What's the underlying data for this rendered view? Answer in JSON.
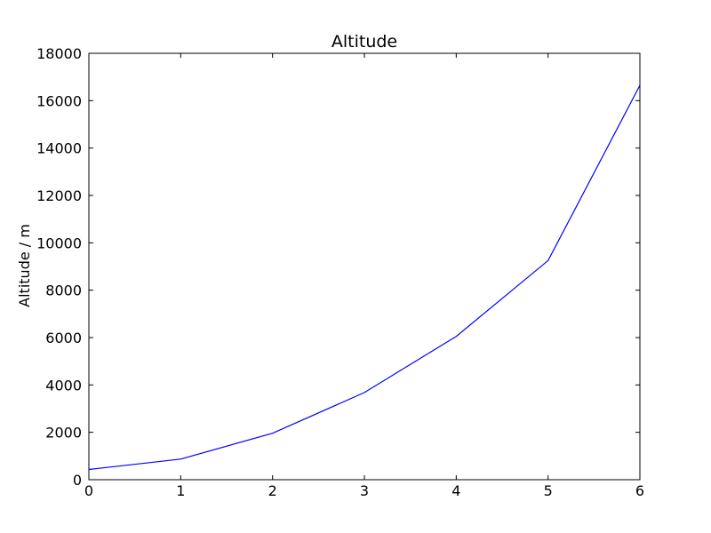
{
  "chart_data": {
    "type": "line",
    "title": "Altitude",
    "xlabel": "",
    "ylabel": "Altitude / m",
    "xlim": [
      0,
      6
    ],
    "ylim": [
      0,
      18000
    ],
    "x_ticks": [
      0,
      1,
      2,
      3,
      4,
      5,
      6
    ],
    "y_ticks": [
      0,
      2000,
      4000,
      6000,
      8000,
      10000,
      12000,
      14000,
      16000,
      18000
    ],
    "grid": false,
    "legend": "none",
    "series": [
      {
        "color": "#0000ff",
        "x": [
          0,
          1,
          2,
          3,
          4,
          5,
          6
        ],
        "y": [
          430,
          870,
          1960,
          3680,
          6050,
          9250,
          16650
        ]
      }
    ]
  }
}
